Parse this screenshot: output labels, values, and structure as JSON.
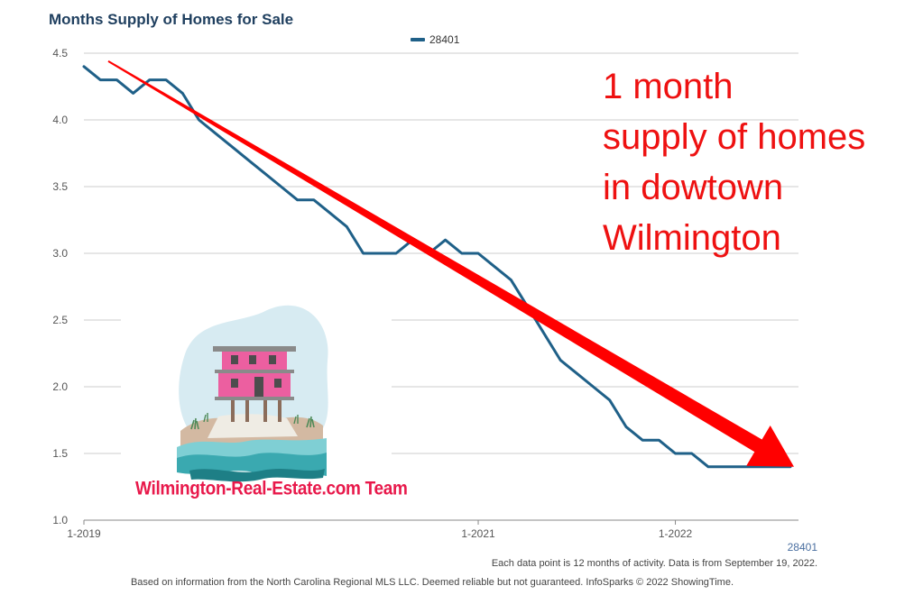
{
  "chart_data": {
    "type": "line",
    "title": "Months Supply of Homes for Sale",
    "legend": "top",
    "grid": true,
    "ylim": [
      1.0,
      4.5
    ],
    "yticks": [
      "1.0",
      "1.5",
      "2.0",
      "2.5",
      "3.0",
      "3.5",
      "4.0",
      "4.5"
    ],
    "xticks": [
      "1-2019",
      "1-2021",
      "1-2022"
    ],
    "x_start": "1-2019",
    "series": [
      {
        "name": "28401",
        "color": "#1f6088",
        "values": [
          4.4,
          4.3,
          4.3,
          4.2,
          4.3,
          4.3,
          4.2,
          4.0,
          3.9,
          3.8,
          3.7,
          3.6,
          3.5,
          3.4,
          3.4,
          3.3,
          3.2,
          3.0,
          3.0,
          3.0,
          3.1,
          3.0,
          3.1,
          3.0,
          3.0,
          2.9,
          2.8,
          2.6,
          2.4,
          2.2,
          2.1,
          2.0,
          1.9,
          1.7,
          1.6,
          1.6,
          1.5,
          1.5,
          1.4,
          1.4,
          1.4,
          1.4,
          1.4,
          1.4
        ]
      }
    ],
    "trend_arrow": {
      "color": "#ff0000",
      "from": 4.44,
      "to": 1.4
    }
  },
  "annotation": {
    "lines": [
      "1 month",
      "supply of homes",
      "in dowtown",
      "Wilmington"
    ],
    "color": "#ee1111"
  },
  "series_tag": "28401",
  "note": "Each data point is 12 months of activity. Data is from September 19, 2022.",
  "footer": "Based on information from the North Carolina Regional MLS LLC. Deemed reliable but not guaranteed. InfoSparks © 2022 ShowingTime.",
  "logo": {
    "text": "Wilmington-Real-Estate.com Team",
    "color": "#e8194b"
  }
}
